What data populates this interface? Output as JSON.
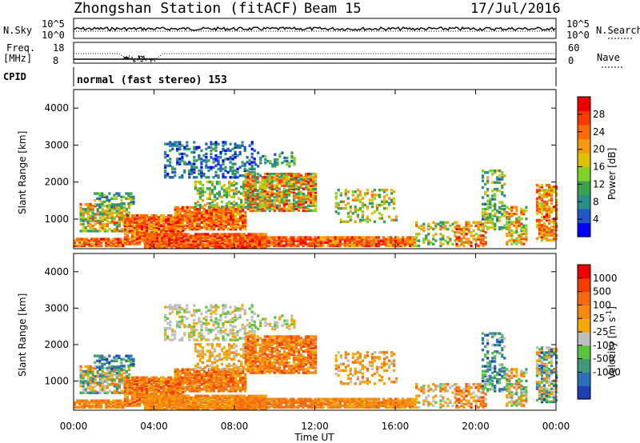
{
  "header": {
    "title": "Zhongshan Station (fitACF)",
    "beam": "Beam 15",
    "date": "17/Jul/2016"
  },
  "top_panels": {
    "nsky_label": "N.Sky",
    "nsky_ticks": [
      "10^5",
      "10^0"
    ],
    "nsearch_label": "N.Search",
    "nsearch_ticks": [
      "10^5",
      "10^0"
    ],
    "freq_label_1": "Freq.",
    "freq_label_2": "[MHz]",
    "freq_ticks": [
      "18",
      "8"
    ],
    "nave_label": "Nave",
    "nave_ticks": [
      "60",
      "0"
    ],
    "cpid_label": "CPID",
    "cpid_text": "normal (fast stereo) 153"
  },
  "chart_data": [
    {
      "type": "heatmap",
      "name": "power",
      "ylabel": "Slant Range [km]",
      "yticks": [
        "1000",
        "2000",
        "3000",
        "4000"
      ],
      "ylim": [
        200,
        4500
      ],
      "colorbar_label": "Power [dB]",
      "colorbar_ticks": [
        "4",
        "8",
        "12",
        "16",
        "20",
        "24",
        "28"
      ],
      "colorbar_colors": [
        "#0000ff",
        "#1f57c8",
        "#2a8f8a",
        "#3aa24a",
        "#7fd22a",
        "#e3c000",
        "#f39a10",
        "#ff6a00",
        "#f83a00",
        "#ee0000"
      ]
    },
    {
      "type": "heatmap",
      "name": "velocity",
      "ylabel": "Slant Range [km]",
      "yticks": [
        "1000",
        "2000",
        "3000",
        "4000"
      ],
      "ylim": [
        200,
        4500
      ],
      "colorbar_label": "Velocity [m s",
      "colorbar_label_sup": "-1",
      "colorbar_label_end": "]",
      "colorbar_ticks": [
        "1000",
        "500",
        "100",
        "25",
        "-25",
        "-100",
        "-500",
        "-1000"
      ],
      "colorbar_colors": [
        "#1f3fb0",
        "#2d6fb8",
        "#3f9a7c",
        "#59c43e",
        "#bebebe",
        "#f5a800",
        "#f48a12",
        "#f56a10",
        "#f63a00",
        "#ef0000"
      ]
    }
  ],
  "xaxis": {
    "ticks": [
      "00:00",
      "04:00",
      "08:00",
      "12:00",
      "16:00",
      "20:00",
      "00:00"
    ],
    "label": "Time UT"
  }
}
